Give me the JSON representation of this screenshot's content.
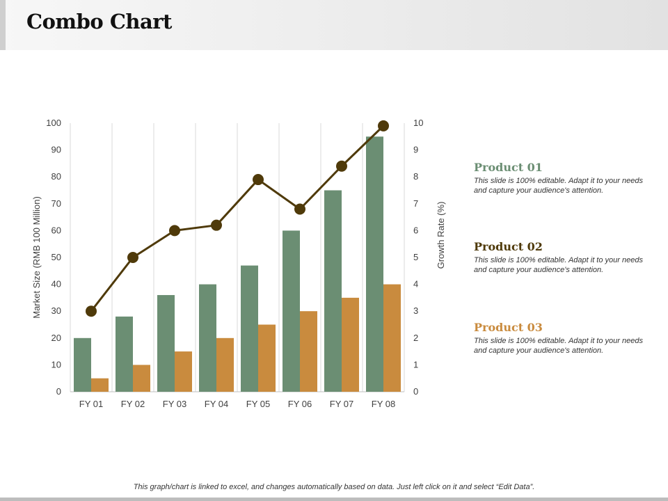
{
  "title": "Combo Chart",
  "chart_data": {
    "type": "bar",
    "categories": [
      "FY 01",
      "FY 02",
      "FY 03",
      "FY 04",
      "FY 05",
      "FY 06",
      "FY 07",
      "FY 08"
    ],
    "series": [
      {
        "name": "Product 01",
        "kind": "bar",
        "axis": "left",
        "color": "#6b8e73",
        "values": [
          20,
          28,
          36,
          40,
          47,
          60,
          75,
          95
        ]
      },
      {
        "name": "Product 03",
        "kind": "bar",
        "axis": "left",
        "color": "#c98b3e",
        "values": [
          5,
          10,
          15,
          20,
          25,
          30,
          35,
          40
        ]
      },
      {
        "name": "Product 02",
        "kind": "line",
        "axis": "right",
        "color": "#4f3a0a",
        "values": [
          3,
          5,
          6,
          6.2,
          7.9,
          6.8,
          8.4,
          9.9
        ]
      }
    ],
    "ylabel": "Market Size (RMB 100 Million)",
    "ylabel_right": "Growth Rate (%)",
    "ylim": [
      0,
      100
    ],
    "ylim_right": [
      0,
      10
    ],
    "yticks": [
      "0",
      "10",
      "20",
      "30",
      "40",
      "50",
      "60",
      "70",
      "80",
      "90",
      "100"
    ],
    "yticks_right": [
      "0",
      "1",
      "2",
      "3",
      "4",
      "5",
      "6",
      "7",
      "8",
      "9",
      "10"
    ],
    "grid": "vertical"
  },
  "legend": [
    {
      "name": "Product 01",
      "color": "#6b8e73",
      "desc": "This slide is 100% editable. Adapt it to your needs and capture your audience's attention."
    },
    {
      "name": "Product 02",
      "color": "#4f3a0a",
      "desc": "This slide is 100% editable. Adapt it to your needs and capture your audience's attention."
    },
    {
      "name": "Product 03",
      "color": "#c98b3e",
      "desc": "This slide is 100% editable. Adapt it to your needs and capture your audience's attention."
    }
  ],
  "footer": "This graph/chart is linked to excel, and changes automatically based on data. Just left click on it and select “Edit Data”."
}
